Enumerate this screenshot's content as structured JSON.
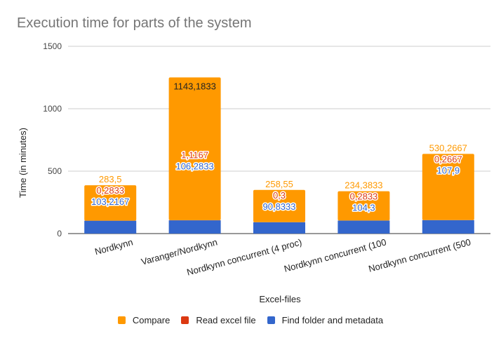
{
  "chart_data": {
    "type": "bar",
    "stacked": true,
    "title": "Execution time for parts of the system",
    "xlabel": "Excel-files",
    "ylabel": "Time (in minutes)",
    "ylim": [
      0,
      1500
    ],
    "yticks": [
      0,
      500,
      1000,
      1500
    ],
    "grid": true,
    "legend_position": "bottom",
    "categories": [
      "Nordkynn",
      "Varanger/Nordkynn",
      "Nordkynn concurrent (4 proc)",
      "Nordkynn concurrent (100",
      "Nordkynn concurrent (500"
    ],
    "series": [
      {
        "name": "Find folder and metadata",
        "color": "#3366cc",
        "values": [
          103.2167,
          106.2833,
          90.8333,
          104.3,
          107.9
        ],
        "labels": [
          "103,2167",
          "106,2833",
          "90,8333",
          "104,3",
          "107,9"
        ]
      },
      {
        "name": "Read excel file",
        "color": "#dc3912",
        "values": [
          0.2833,
          1.1167,
          0.3,
          0.2833,
          0.2667
        ],
        "labels": [
          "0,2833",
          "1,1167",
          "0,3",
          "0,2833",
          "0,2667"
        ]
      },
      {
        "name": "Compare",
        "color": "#ff9900",
        "values": [
          283.5,
          1143.1833,
          258.55,
          234.3833,
          530.2667
        ],
        "labels": [
          "283,5",
          "1143,1833",
          "258,55",
          "234,3833",
          "530,2667"
        ]
      }
    ],
    "legend_order": [
      "Compare",
      "Read excel file",
      "Find folder and metadata"
    ]
  }
}
